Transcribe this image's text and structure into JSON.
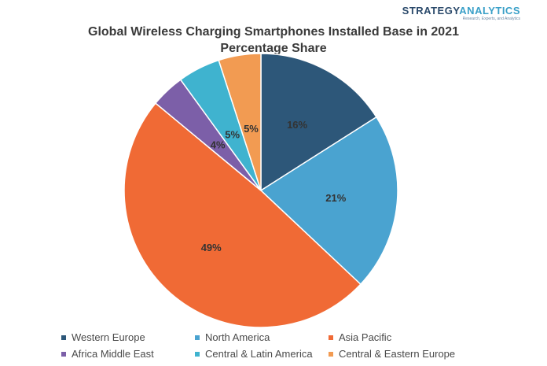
{
  "logo": {
    "brand_main": "STRATEGY",
    "brand_accent": "ANALYTICS",
    "tagline": "Research, Experts, and Analytics"
  },
  "chart_data": {
    "type": "pie",
    "title": "Global Wireless Charging Smartphones Installed Base in 2021",
    "subtitle": "Percentage Share",
    "categories": [
      "Western Europe",
      "North America",
      "Asia Pacific",
      "Africa Middle East",
      "Central & Latin America",
      "Central & Eastern Europe"
    ],
    "values": [
      16,
      21,
      49,
      4,
      5,
      5
    ],
    "labels": [
      "16%",
      "21%",
      "49%",
      "4%",
      "5%",
      "5%"
    ],
    "colors": [
      "#2d5779",
      "#4aa3d0",
      "#f06a35",
      "#7c5fa8",
      "#3fb3cf",
      "#f29b52"
    ],
    "legend_position": "bottom"
  }
}
